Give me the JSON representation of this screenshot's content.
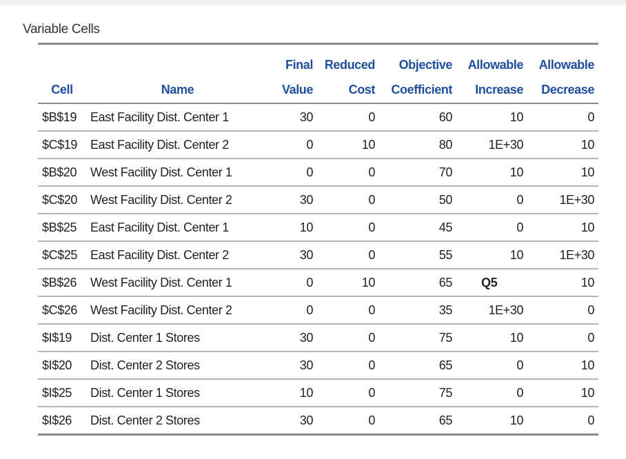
{
  "title": "Variable Cells",
  "table": {
    "columns": [
      {
        "lines": [
          "Cell"
        ]
      },
      {
        "lines": [
          "Name"
        ]
      },
      {
        "lines": [
          "Final",
          "Value"
        ]
      },
      {
        "lines": [
          "Reduced",
          "Cost"
        ]
      },
      {
        "lines": [
          "Objective",
          "Coefficient"
        ]
      },
      {
        "lines": [
          "Allowable",
          "Increase"
        ]
      },
      {
        "lines": [
          "Allowable",
          "Decrease"
        ]
      }
    ],
    "rows": [
      [
        "$B$19",
        "East Facility Dist. Center 1",
        30,
        0,
        60,
        10,
        0
      ],
      [
        "$C$19",
        "East Facility Dist. Center 2",
        0,
        10,
        80,
        "1E+30",
        10
      ],
      [
        "$B$20",
        "West Facility Dist. Center 1",
        0,
        0,
        70,
        10,
        10
      ],
      [
        "$C$20",
        "West Facility Dist. Center 2",
        30,
        0,
        50,
        0,
        "1E+30"
      ],
      [
        "$B$25",
        "East Facility Dist. Center 1",
        10,
        0,
        45,
        0,
        10
      ],
      [
        "$C$25",
        "East Facility Dist. Center 2",
        30,
        0,
        55,
        10,
        "1E+30"
      ],
      [
        "$B$26",
        "West Facility Dist. Center 1",
        0,
        10,
        65,
        "Q5",
        10
      ],
      [
        "$C$26",
        "West Facility Dist. Center 2",
        0,
        0,
        35,
        "1E+30",
        0
      ],
      [
        "$I$19",
        "Dist. Center 1 Stores",
        30,
        0,
        75,
        10,
        0
      ],
      [
        "$I$20",
        "Dist. Center 2 Stores",
        30,
        0,
        65,
        0,
        10
      ],
      [
        "$I$25",
        "Dist. Center 1 Stores",
        10,
        0,
        75,
        0,
        10
      ],
      [
        "$I$26",
        "Dist. Center 2 Stores",
        30,
        0,
        65,
        10,
        0
      ]
    ]
  }
}
